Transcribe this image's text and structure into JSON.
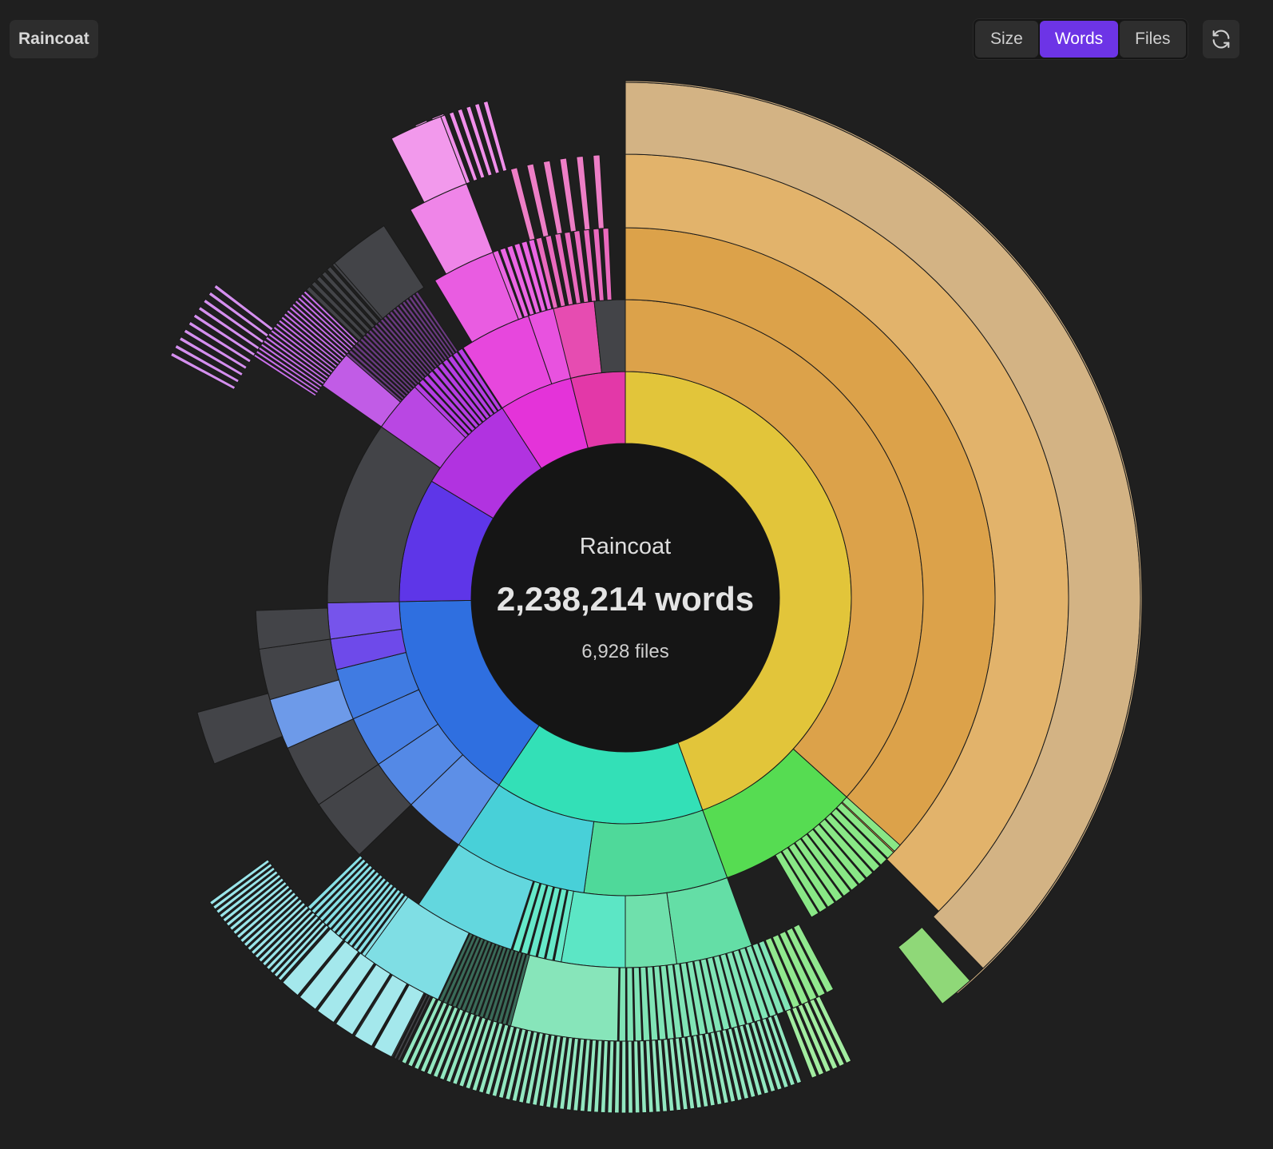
{
  "breadcrumb": {
    "label": "Raincoat"
  },
  "modes": [
    {
      "id": "size",
      "label": "Size",
      "active": false
    },
    {
      "id": "words",
      "label": "Words",
      "active": true
    },
    {
      "id": "files",
      "label": "Files",
      "active": false
    }
  ],
  "refresh": {
    "icon": "refresh-icon"
  },
  "center": {
    "name": "Raincoat",
    "total": "2,238,214 words",
    "files": "6,928 files"
  },
  "chart_data": {
    "type": "sunburst",
    "root": "Raincoat",
    "total_words": 2238214,
    "total_files": 6928,
    "colors": {
      "yellow": "#e2c53a",
      "orange": "#dca24a",
      "orange_light": "#d9ac6b",
      "tan": "#d3b384",
      "green": "#56dc52",
      "green_light": "#8fd878",
      "teal": "#33e0b7",
      "mint": "#4fd99a",
      "cyan": "#48d0d8",
      "blue": "#2f6fe0",
      "indigo": "#5e36e8",
      "purple": "#b133e0",
      "magenta": "#e433d9",
      "pink": "#e338a8",
      "gray": "#434448"
    }
  }
}
